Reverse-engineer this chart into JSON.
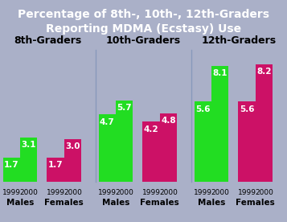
{
  "title_line1": "Percentage of 8th-, 10th-, 12th-Graders",
  "title_line2": "Reporting MDMA (Ecstasy) Use",
  "title_bg": "#2f55a0",
  "title_color": "white",
  "panel_bg": "#aab0c8",
  "plot_bg_light": "#c0c6d8",
  "plot_bg_dark": "#b8bece",
  "groups": [
    "8th-Graders",
    "10th-Graders",
    "12th-Graders"
  ],
  "bar_data": [
    {
      "males": [
        1.7,
        3.1
      ],
      "females": [
        1.7,
        3.0
      ]
    },
    {
      "males": [
        4.7,
        5.7
      ],
      "females": [
        4.2,
        4.8
      ]
    },
    {
      "males": [
        5.6,
        8.1
      ],
      "females": [
        5.6,
        8.2
      ]
    }
  ],
  "years": [
    "1999",
    "2000"
  ],
  "green_color": "#22dd22",
  "red_color": "#cc1166",
  "label_color": "white",
  "xlabel_males": "Males",
  "xlabel_females": "Females",
  "ylim": [
    0,
    9.2
  ],
  "group_label_fontsize": 9,
  "bar_label_fontsize": 7.5,
  "year_fontsize": 6.5,
  "gender_fontsize": 7.5,
  "title_fontsize": 10
}
